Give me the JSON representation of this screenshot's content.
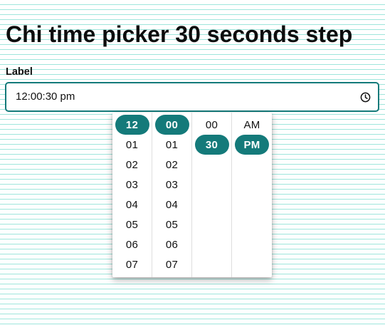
{
  "page": {
    "title": "Chi time picker 30 seconds step"
  },
  "field": {
    "label": "Label",
    "value": "12:00:30 pm",
    "icon": "clock-icon"
  },
  "picker": {
    "hours": [
      {
        "label": "12",
        "selected": true
      },
      {
        "label": "01",
        "selected": false
      },
      {
        "label": "02",
        "selected": false
      },
      {
        "label": "03",
        "selected": false
      },
      {
        "label": "04",
        "selected": false
      },
      {
        "label": "05",
        "selected": false
      },
      {
        "label": "06",
        "selected": false
      },
      {
        "label": "07",
        "selected": false
      }
    ],
    "minutes": [
      {
        "label": "00",
        "selected": true
      },
      {
        "label": "01",
        "selected": false
      },
      {
        "label": "02",
        "selected": false
      },
      {
        "label": "03",
        "selected": false
      },
      {
        "label": "04",
        "selected": false
      },
      {
        "label": "05",
        "selected": false
      },
      {
        "label": "06",
        "selected": false
      },
      {
        "label": "07",
        "selected": false
      }
    ],
    "seconds": [
      {
        "label": "00",
        "selected": false
      },
      {
        "label": "30",
        "selected": true
      }
    ],
    "period": [
      {
        "label": "AM",
        "selected": false
      },
      {
        "label": "PM",
        "selected": true
      }
    ]
  },
  "colors": {
    "accent": "#147a7a",
    "background_lines": "#9fe6dc"
  }
}
